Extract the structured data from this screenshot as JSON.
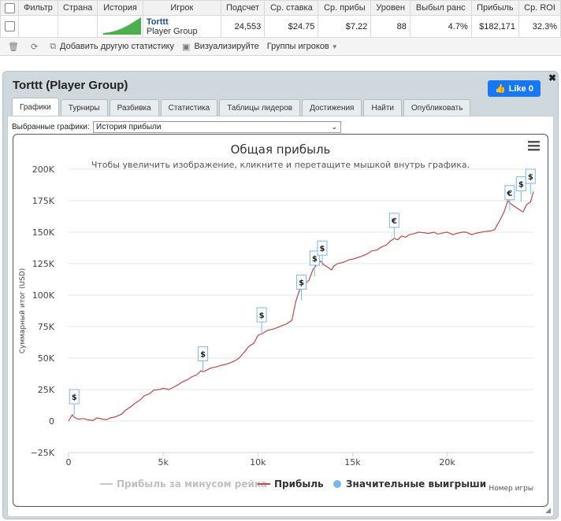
{
  "table": {
    "headers": [
      "Фильтр",
      "Страна",
      "История",
      "Игрок",
      "Подсчет",
      "Ср. ставка",
      "Ср. прибы",
      "Уровен",
      "Выбыл ранс",
      "Прибыль",
      "Ср. ROI"
    ],
    "row": {
      "player_name": "Torttt",
      "player_group": "Player Group",
      "count": "24,553",
      "avg_stake": "$24.75",
      "avg_profit": "$7.22",
      "level": "88",
      "early_out": "4.7%",
      "profit": "$182,171",
      "avg_roi": "32.3%"
    }
  },
  "toolbar": {
    "add_stat": "Добавить другую статистику",
    "visualize": "Визуализируйте",
    "groups": "Группы игроков"
  },
  "panel": {
    "title": "Torttt (Player Group)",
    "like_label": "Like 0",
    "tabs": [
      "Графики",
      "Турниры",
      "Разбивка",
      "Статистика",
      "Таблицы лидеров",
      "Достижения",
      "Найти",
      "Опубликовать"
    ],
    "selected_label": "Выбранные графики:",
    "selected_value": "История прибыли"
  },
  "chart_data": {
    "type": "line",
    "title": "Общая прибыль",
    "subtitle": "Чтобы увеличить изображение, кликните и перетащите мышкой внутрь графика.",
    "ylabel": "Суммарный итог (USD)",
    "xlabel": "Номер игры",
    "xlim": [
      0,
      24553
    ],
    "ylim": [
      -25000,
      200000
    ],
    "x_ticks": [
      0,
      5000,
      10000,
      15000,
      20000
    ],
    "x_tick_labels": [
      "0",
      "5k",
      "10k",
      "15k",
      "20k"
    ],
    "y_ticks": [
      -25000,
      0,
      25000,
      50000,
      75000,
      100000,
      125000,
      150000,
      175000,
      200000
    ],
    "y_tick_labels": [
      "−25K",
      "0",
      "25K",
      "50K",
      "75K",
      "100K",
      "125K",
      "150K",
      "175K",
      "200K"
    ],
    "legend": [
      "Прибыль за минусом рейка",
      "Прибыль",
      "Значительные выигрыши"
    ],
    "colors": {
      "profit": "#b84a4a",
      "rake": "#c8c8c8",
      "wins": "#7cb5ec"
    },
    "series": [
      {
        "name": "Прибыль",
        "x": [
          0,
          200,
          300,
          500,
          800,
          1000,
          1300,
          1500,
          1800,
          2000,
          2200,
          2500,
          2800,
          3000,
          3300,
          3500,
          3800,
          4000,
          4300,
          4500,
          4800,
          5000,
          5300,
          5500,
          5800,
          6000,
          6300,
          6500,
          6800,
          7000,
          7100,
          7300,
          7500,
          7800,
          8000,
          8300,
          8500,
          8800,
          9000,
          9300,
          9500,
          9800,
          10000,
          10300,
          10500,
          10800,
          11000,
          11300,
          11500,
          11800,
          12000,
          12200,
          12500,
          12700,
          12900,
          13100,
          13300,
          13500,
          13700,
          13900,
          14000,
          14200,
          14500,
          14800,
          15000,
          15300,
          15500,
          15800,
          16000,
          16300,
          16500,
          16800,
          17000,
          17200,
          17400,
          17600,
          17800,
          18000,
          18300,
          18500,
          18800,
          19000,
          19300,
          19500,
          19800,
          20000,
          20300,
          20500,
          20800,
          21000,
          21300,
          21500,
          21800,
          22000,
          22300,
          22500,
          22800,
          23000,
          23200,
          23400,
          23600,
          23800,
          24000,
          24200,
          24400,
          24553
        ],
        "y": [
          0,
          5000,
          3000,
          1500,
          2000,
          1000,
          500,
          2500,
          1500,
          1000,
          2500,
          3500,
          5500,
          8500,
          11500,
          14000,
          17000,
          20000,
          22000,
          24500,
          25000,
          26000,
          25000,
          26500,
          29000,
          31000,
          33000,
          35000,
          37000,
          40000,
          39000,
          40500,
          42000,
          43000,
          44000,
          45000,
          46000,
          48000,
          50000,
          55000,
          59000,
          62000,
          68000,
          70000,
          72000,
          73000,
          74000,
          76000,
          77000,
          80000,
          95000,
          104000,
          109000,
          112000,
          120000,
          124000,
          127000,
          124000,
          122000,
          120000,
          123000,
          125000,
          126000,
          128000,
          128500,
          130000,
          131000,
          133000,
          135000,
          136000,
          138000,
          140000,
          143000,
          145000,
          144000,
          147000,
          146000,
          148000,
          149000,
          150000,
          149500,
          149000,
          150000,
          148500,
          149500,
          150000,
          148000,
          149000,
          150000,
          150000,
          148000,
          149000,
          150000,
          150500,
          151000,
          152000,
          160000,
          166000,
          175000,
          172000,
          170000,
          168000,
          166000,
          172000,
          174000,
          182171
        ]
      }
    ],
    "big_wins": [
      {
        "x": 300,
        "y": 5000,
        "label": "$"
      },
      {
        "x": 7100,
        "y": 39000,
        "label": "$"
      },
      {
        "x": 10200,
        "y": 70000,
        "label": "$"
      },
      {
        "x": 12300,
        "y": 96000,
        "label": "$"
      },
      {
        "x": 13000,
        "y": 115000,
        "label": "$"
      },
      {
        "x": 13400,
        "y": 123000,
        "label": "$"
      },
      {
        "x": 17200,
        "y": 145000,
        "label": "€"
      },
      {
        "x": 23300,
        "y": 167000,
        "label": "€"
      },
      {
        "x": 23900,
        "y": 174000,
        "label": "$"
      },
      {
        "x": 24400,
        "y": 180000,
        "label": "$"
      }
    ]
  }
}
